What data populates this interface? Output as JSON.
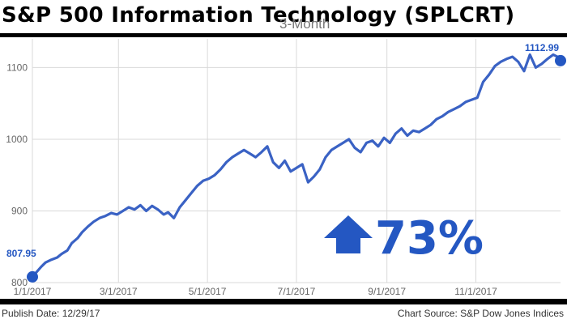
{
  "title": "S&P 500 Information Technology (SPLCRT)",
  "subtitle": "3-Month",
  "footer": {
    "publish": "Publish Date: 12/29/17",
    "source": "Chart Source: S&P Dow Jones Indices"
  },
  "colors": {
    "line": "#3a62c4",
    "accent": "#2457c2",
    "grid": "#d9d9d9"
  },
  "callout": {
    "icon": "up-arrow-icon",
    "text": "73%"
  },
  "chart_data": {
    "type": "line",
    "title": "S&P 500 Information Technology (SPLCRT)",
    "xlabel": "",
    "ylabel": "",
    "ylim": [
      800,
      1140
    ],
    "xlim": [
      "2017-01-01",
      "2017-12-29"
    ],
    "grid": true,
    "y_ticks": [
      800,
      900,
      1000,
      1100
    ],
    "x_ticks": [
      {
        "date": "2017-01-01",
        "label": "1/1/2017"
      },
      {
        "date": "2017-03-01",
        "label": "3/1/2017"
      },
      {
        "date": "2017-05-01",
        "label": "5/1/2017"
      },
      {
        "date": "2017-07-01",
        "label": "7/1/2017"
      },
      {
        "date": "2017-09-01",
        "label": "9/1/2017"
      },
      {
        "date": "2017-11-01",
        "label": "11/1/2017"
      }
    ],
    "start_label": "807.95",
    "end_label": "1112.99",
    "series": [
      {
        "x": [
          "2017-01-01",
          "2017-01-04",
          "2017-01-07",
          "2017-01-10",
          "2017-01-14",
          "2017-01-18",
          "2017-01-21",
          "2017-01-25",
          "2017-01-28",
          "2017-02-01",
          "2017-02-04",
          "2017-02-08",
          "2017-02-12",
          "2017-02-16",
          "2017-02-20",
          "2017-02-24",
          "2017-02-28",
          "2017-03-04",
          "2017-03-08",
          "2017-03-12",
          "2017-03-16",
          "2017-03-20",
          "2017-03-24",
          "2017-03-28",
          "2017-04-01",
          "2017-04-04",
          "2017-04-08",
          "2017-04-12",
          "2017-04-16",
          "2017-04-20",
          "2017-04-24",
          "2017-04-28",
          "2017-05-02",
          "2017-05-06",
          "2017-05-10",
          "2017-05-14",
          "2017-05-18",
          "2017-05-22",
          "2017-05-26",
          "2017-05-30",
          "2017-06-03",
          "2017-06-07",
          "2017-06-11",
          "2017-06-15",
          "2017-06-19",
          "2017-06-23",
          "2017-06-27",
          "2017-07-01",
          "2017-07-05",
          "2017-07-09",
          "2017-07-13",
          "2017-07-17",
          "2017-07-21",
          "2017-07-25",
          "2017-07-29",
          "2017-08-02",
          "2017-08-06",
          "2017-08-10",
          "2017-08-14",
          "2017-08-18",
          "2017-08-22",
          "2017-08-26",
          "2017-08-30",
          "2017-09-03",
          "2017-09-07",
          "2017-09-11",
          "2017-09-15",
          "2017-09-19",
          "2017-09-23",
          "2017-09-27",
          "2017-10-01",
          "2017-10-05",
          "2017-10-09",
          "2017-10-13",
          "2017-10-17",
          "2017-10-21",
          "2017-10-25",
          "2017-10-29",
          "2017-11-02",
          "2017-11-06",
          "2017-11-10",
          "2017-11-14",
          "2017-11-18",
          "2017-11-22",
          "2017-11-26",
          "2017-11-30",
          "2017-12-04",
          "2017-12-08",
          "2017-12-12",
          "2017-12-16",
          "2017-12-20",
          "2017-12-24",
          "2017-12-29"
        ],
        "values": [
          808,
          815,
          822,
          828,
          832,
          835,
          840,
          845,
          855,
          862,
          870,
          878,
          885,
          890,
          893,
          897,
          895,
          900,
          905,
          902,
          908,
          900,
          907,
          902,
          895,
          898,
          890,
          905,
          915,
          925,
          935,
          942,
          945,
          950,
          958,
          968,
          975,
          980,
          985,
          980,
          975,
          982,
          990,
          968,
          960,
          970,
          955,
          960,
          965,
          940,
          948,
          958,
          975,
          985,
          990,
          995,
          1000,
          988,
          982,
          995,
          998,
          990,
          1002,
          995,
          1008,
          1015,
          1005,
          1012,
          1010,
          1015,
          1020,
          1028,
          1032,
          1038,
          1042,
          1046,
          1052,
          1055,
          1058,
          1080,
          1090,
          1102,
          1108,
          1112,
          1115,
          1108,
          1095,
          1118,
          1100,
          1105,
          1112,
          1118,
          1112.99
        ]
      }
    ]
  }
}
